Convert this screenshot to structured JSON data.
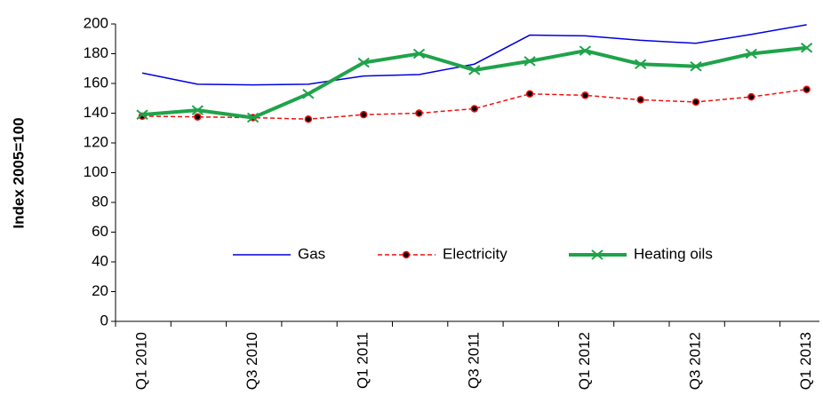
{
  "chart_data": {
    "type": "line",
    "y_label": "Index 2005=100",
    "categories": [
      "Q1 2010",
      null,
      "Q3 2010",
      null,
      "Q1 2011",
      null,
      "Q3 2011",
      null,
      "Q1 2012",
      null,
      "Q3 2012",
      null,
      "Q1 2013"
    ],
    "series": [
      {
        "name": "Gas",
        "color": "#0000dd",
        "values": [
          167,
          159.5,
          159,
          159.5,
          165,
          166,
          173,
          192.5,
          192,
          189,
          187,
          193,
          199.5
        ]
      },
      {
        "name": "Electricity",
        "color": "#ee1111",
        "values": [
          138,
          137.5,
          137,
          136,
          139,
          140,
          143,
          153,
          152,
          149,
          147.5,
          151,
          156
        ]
      },
      {
        "name": "Heating oils",
        "color": "#1fa34a",
        "values": [
          139,
          142,
          137,
          153,
          174,
          180,
          169,
          175,
          182,
          173,
          171.5,
          180,
          184
        ]
      }
    ],
    "ylim": [
      0,
      200
    ],
    "yticks": [
      0,
      20,
      40,
      60,
      80,
      100,
      120,
      140,
      160,
      180,
      200
    ]
  }
}
